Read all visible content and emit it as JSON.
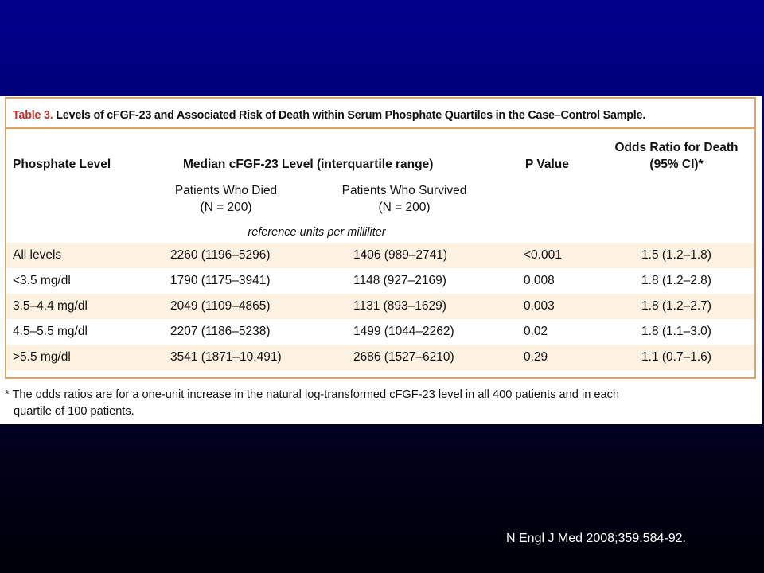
{
  "table": {
    "title": {
      "label": "Table 3.",
      "text": "Levels of cFGF-23 and Associated Risk of Death within Serum Phosphate Quartiles in the Case–Control Sample."
    },
    "headers": {
      "phosphate_level": "Phosphate Level",
      "median": "Median cFGF-23 Level (interquartile range)",
      "died": [
        "Patients Who Died",
        "(N = 200)"
      ],
      "survived": [
        "Patients Who Survived",
        "(N = 200)"
      ],
      "units": "reference units per milliliter",
      "p_value": "P Value",
      "odds_ratio": [
        "Odds Ratio for Death",
        "(95% CI)*"
      ]
    },
    "rows": [
      [
        "All levels",
        "2260 (1196–5296)",
        "1406 (989–2741)",
        "<0.001",
        "1.5 (1.2–1.8)"
      ],
      [
        "<3.5 mg/dl",
        "1790 (1175–3941)",
        "1148 (927–2169)",
        "0.008",
        "1.8 (1.2–2.8)"
      ],
      [
        "3.5–4.4 mg/dl",
        "2049 (1109–4865)",
        "1131 (893–1629)",
        "0.003",
        "1.8 (1.2–2.7)"
      ],
      [
        "4.5–5.5 mg/dl",
        "2207 (1186–5238)",
        "1499 (1044–2262)",
        "0.02",
        "1.8 (1.1–3.0)"
      ],
      [
        ">5.5 mg/dl",
        "3541 (1871–10,491)",
        "2686 (1527–6210)",
        "0.29",
        "1.1 (0.7–1.6)"
      ]
    ],
    "footnote": [
      "* The odds ratios are for a one-unit increase in the natural log-transformed cFGF-23 level in all 400 patients and in each",
      "quartile of 100 patients."
    ]
  },
  "citation": "N Engl J Med 2008;359:584-92."
}
